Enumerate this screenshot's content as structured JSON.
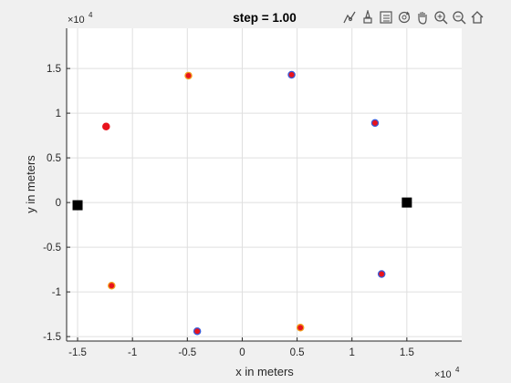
{
  "title": "step = 1.00",
  "toolbar": {
    "buttons": [
      {
        "name": "data-tips-icon"
      },
      {
        "name": "brush-icon"
      },
      {
        "name": "legend-icon"
      },
      {
        "name": "rotate-icon"
      },
      {
        "name": "pan-hand-icon"
      },
      {
        "name": "zoom-in-icon"
      },
      {
        "name": "zoom-out-icon"
      },
      {
        "name": "home-icon"
      }
    ]
  },
  "chart_data": {
    "type": "scatter",
    "title": "step = 1.00",
    "xlabel": "x in meters",
    "ylabel": "y in meters",
    "xlim": [
      -16000,
      20000
    ],
    "ylim": [
      -15500,
      19500
    ],
    "x_exponent_label": "×10",
    "x_exponent_power": "4",
    "y_exponent_label": "×10",
    "y_exponent_power": "4",
    "x_ticks": [
      -15000,
      -10000,
      -5000,
      0,
      5000,
      10000,
      15000
    ],
    "x_tick_labels": [
      "-1.5",
      "-1",
      "-0.5",
      "0",
      "0.5",
      "1",
      "1.5"
    ],
    "y_ticks": [
      -15000,
      -10000,
      -5000,
      0,
      5000,
      10000,
      15000
    ],
    "y_tick_labels": [
      "-1.5",
      "-1",
      "-0.5",
      "0",
      "0.5",
      "1",
      "1.5"
    ],
    "grid": true,
    "colors": {
      "marker_fill": "#e8131c",
      "marker_edge_blue": "#3a5bd9",
      "marker_edge_orange": "#f0a020",
      "square": "#000000"
    },
    "series": [
      {
        "marker": "circle",
        "points": [
          {
            "x": -12400,
            "y": 8500,
            "edge": "red"
          },
          {
            "x": -4900,
            "y": 14200,
            "edge": "orange"
          },
          {
            "x": 4500,
            "y": 14300,
            "edge": "blue"
          },
          {
            "x": 12100,
            "y": 8900,
            "edge": "blue"
          },
          {
            "x": -11900,
            "y": -9300,
            "edge": "orange"
          },
          {
            "x": 12700,
            "y": -8000,
            "edge": "blue"
          },
          {
            "x": -4100,
            "y": -14400,
            "edge": "blue"
          },
          {
            "x": 5300,
            "y": -14000,
            "edge": "orange"
          }
        ]
      },
      {
        "marker": "square",
        "points": [
          {
            "x": -15000,
            "y": -300
          },
          {
            "x": 15000,
            "y": 0
          }
        ]
      }
    ]
  }
}
